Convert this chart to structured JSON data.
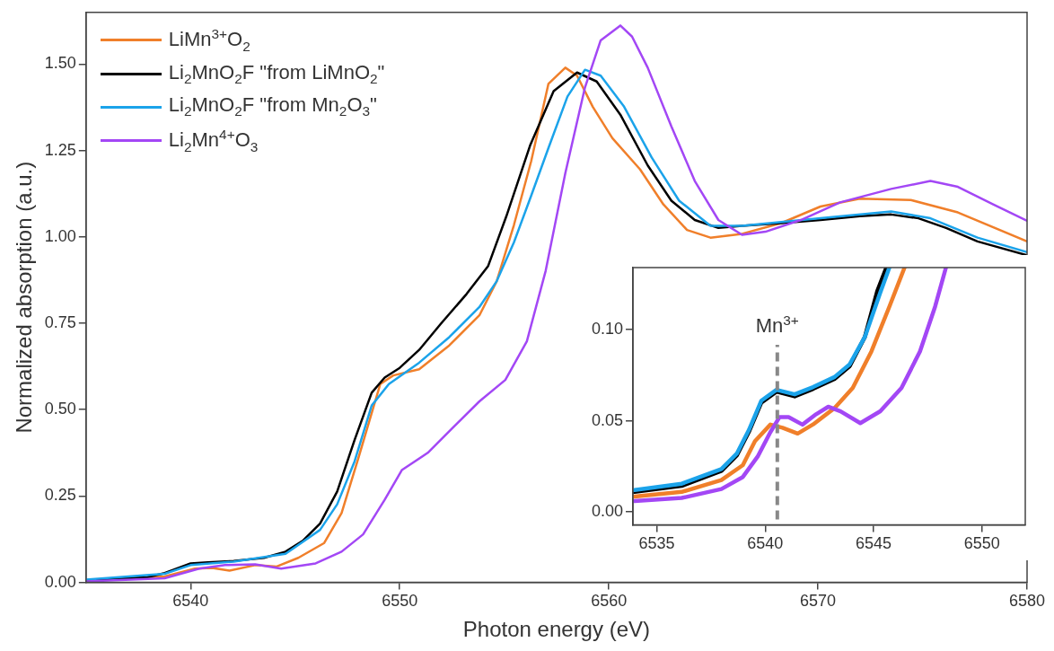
{
  "chart_data": [
    {
      "type": "line",
      "xlabel": "Photon energy (eV)",
      "ylabel": "Normalized absorption (a.u.)",
      "xlim": [
        6535,
        6580
      ],
      "xticks": [
        6540,
        6550,
        6560,
        6570,
        6580
      ],
      "ylim": [
        0,
        1.65
      ],
      "yticks": [
        {
          "value": 0,
          "label": "0.00"
        },
        {
          "value": 0.25,
          "label": "0.25"
        },
        {
          "value": 0.5,
          "label": "0.50"
        },
        {
          "value": 0.75,
          "label": "0.75"
        },
        {
          "value": 1,
          "label": "1.00"
        },
        {
          "value": 1.25,
          "label": "1.25"
        },
        {
          "value": 1.5,
          "label": "1.50"
        }
      ],
      "legend": "top left",
      "marker": "none",
      "line_style": "solid",
      "series": [
        {
          "name": "LiMn$^{3+}$O$_{2}$",
          "color": "#f07f2a",
          "x": [
            6535,
            6538.76,
            6540.21,
            6541.03,
            6541.86,
            6543.09,
            6544.12,
            6545.15,
            6546.39,
            6547.22,
            6548.04,
            6549.07,
            6549.69,
            6550.93,
            6552.37,
            6553.81,
            6554.64,
            6555.46,
            6556.29,
            6557.11,
            6557.92,
            6558.48,
            6559.23,
            6560.17,
            6561.49,
            6562.61,
            6563.74,
            6564.86,
            6566.37,
            6568.24,
            6570.12,
            6572,
            6574.44,
            6576.69,
            6580
          ],
          "values": [
            0.005,
            0.017,
            0.04,
            0.042,
            0.034,
            0.05,
            0.046,
            0.071,
            0.114,
            0.201,
            0.363,
            0.574,
            0.599,
            0.617,
            0.686,
            0.773,
            0.872,
            1.034,
            1.22,
            1.443,
            1.49,
            1.467,
            1.377,
            1.286,
            1.196,
            1.094,
            1.02,
            0.998,
            1.009,
            1.04,
            1.088,
            1.111,
            1.107,
            1.071,
            0.987
          ]
        },
        {
          "name": "Li$_{2}$MnO$_{2}$F \"from LiMnO$_{2}$\"",
          "color": "#000000",
          "x": [
            6535,
            6537.94,
            6538.76,
            6540,
            6540.82,
            6542.06,
            6543.51,
            6544.54,
            6545.36,
            6546.19,
            6547.01,
            6547.84,
            6548.66,
            6549.28,
            6550,
            6550.93,
            6551.96,
            6553.2,
            6554.23,
            6555.1,
            6556.23,
            6557.36,
            6558.48,
            6559.42,
            6560.55,
            6561.86,
            6562.99,
            6564.11,
            6565.24,
            6566.37,
            6568.24,
            6570.12,
            6572,
            6573.5,
            6574.81,
            6576.13,
            6577.63,
            6580
          ],
          "values": [
            0.005,
            0.015,
            0.027,
            0.055,
            0.058,
            0.062,
            0.071,
            0.089,
            0.12,
            0.17,
            0.263,
            0.412,
            0.549,
            0.593,
            0.621,
            0.673,
            0.748,
            0.835,
            0.916,
            1.06,
            1.264,
            1.422,
            1.476,
            1.45,
            1.354,
            1.207,
            1.105,
            1.049,
            1.026,
            1.032,
            1.04,
            1.049,
            1.06,
            1.065,
            1.054,
            1.026,
            0.987,
            0.947
          ]
        },
        {
          "name": "Li$_{2}$MnO$_{2}$F \"from Mn$_{2}$O$_{3}$\"",
          "color": "#1ba3ea",
          "x": [
            6535,
            6538.76,
            6540,
            6542.06,
            6544.54,
            6546.19,
            6547.01,
            6547.84,
            6548.66,
            6549.48,
            6550.93,
            6552.37,
            6553.81,
            6554.64,
            6555.46,
            6556.29,
            6557.11,
            6558.02,
            6558.86,
            6559.61,
            6560.73,
            6562.05,
            6563.36,
            6564.86,
            6566.37,
            6570.12,
            6573.5,
            6575.38,
            6577.63,
            6580
          ],
          "values": [
            0.008,
            0.025,
            0.05,
            0.06,
            0.083,
            0.152,
            0.226,
            0.35,
            0.512,
            0.574,
            0.636,
            0.71,
            0.797,
            0.872,
            0.984,
            1.12,
            1.257,
            1.406,
            1.484,
            1.467,
            1.377,
            1.23,
            1.105,
            1.032,
            1.032,
            1.054,
            1.074,
            1.054,
            0.998,
            0.956
          ]
        },
        {
          "name": "Li$_{2}$Mn$^{4+}$O$_{3}$",
          "color": "#a347f5",
          "x": [
            6535,
            6538.76,
            6540.41,
            6541.65,
            6543.09,
            6544.33,
            6545.98,
            6547.22,
            6548.25,
            6549.28,
            6550.1,
            6551.34,
            6552.58,
            6553.81,
            6555.05,
            6556.08,
            6556.98,
            6557.92,
            6558.86,
            6559.61,
            6560.55,
            6561.11,
            6561.86,
            6562.99,
            6564.11,
            6565.24,
            6566.37,
            6567.49,
            6569.18,
            6571.06,
            6573.5,
            6575.38,
            6576.69,
            6578.38,
            6580
          ],
          "values": [
            0.003,
            0.012,
            0.04,
            0.05,
            0.052,
            0.04,
            0.055,
            0.089,
            0.139,
            0.239,
            0.325,
            0.375,
            0.45,
            0.524,
            0.586,
            0.698,
            0.902,
            1.185,
            1.433,
            1.569,
            1.612,
            1.58,
            1.49,
            1.32,
            1.162,
            1.049,
            1.006,
            1.015,
            1.049,
            1.1,
            1.139,
            1.162,
            1.145,
            1.094,
            1.047
          ]
        }
      ]
    },
    {
      "type": "line",
      "xlim": [
        6533.9,
        6552
      ],
      "xticks": [
        6535,
        6540,
        6545,
        6550
      ],
      "ylim": [
        -0.007,
        0.134
      ],
      "yticks": [
        {
          "value": 0,
          "label": "0.00"
        },
        {
          "value": 0.05,
          "label": "0.05"
        },
        {
          "value": 0.1,
          "label": "0.10"
        }
      ],
      "marker": "none",
      "line_style": "solid",
      "ref_lines": [
        {
          "axis": "x",
          "value": 6540.56,
          "label": "Mn$^{3+}$",
          "color": "#888888",
          "line_style": "dashed"
        }
      ],
      "series": [
        {
          "color": "#f07f2a",
          "x": [
            6533.97,
            6536.15,
            6537.98,
            6538.97,
            6539.53,
            6540.24,
            6540.8,
            6541.5,
            6542.21,
            6543.2,
            6544.04,
            6544.9,
            6545.73,
            6546.43
          ],
          "values": [
            0.0085,
            0.011,
            0.0175,
            0.0257,
            0.0389,
            0.0479,
            0.0462,
            0.043,
            0.048,
            0.057,
            0.068,
            0.088,
            0.1126,
            0.134
          ]
        },
        {
          "color": "#000000",
          "x": [
            6533.97,
            6536.15,
            6537.98,
            6538.69,
            6539.25,
            6539.82,
            6540.52,
            6541.36,
            6542.21,
            6543.2,
            6543.9,
            6544.6,
            6545.17,
            6545.59
          ],
          "values": [
            0.011,
            0.0143,
            0.0225,
            0.031,
            0.044,
            0.06,
            0.066,
            0.0634,
            0.0675,
            0.073,
            0.08,
            0.096,
            0.121,
            0.134
          ]
        },
        {
          "color": "#1ba3ea",
          "x": [
            6533.97,
            6536.15,
            6537.98,
            6538.69,
            6539.25,
            6539.82,
            6540.52,
            6541.36,
            6542.21,
            6543.2,
            6543.9,
            6544.6,
            6545.3,
            6545.73
          ],
          "values": [
            0.012,
            0.0155,
            0.0235,
            0.032,
            0.045,
            0.061,
            0.067,
            0.0645,
            0.0685,
            0.074,
            0.081,
            0.096,
            0.12,
            0.134
          ]
        },
        {
          "color": "#a347f5",
          "x": [
            6533.97,
            6536.15,
            6537.98,
            6538.97,
            6539.67,
            6540.24,
            6540.66,
            6541.08,
            6541.72,
            6542.35,
            6542.91,
            6543.48,
            6544.39,
            6545.31,
            6546.29,
            6547.14,
            6547.84,
            6548.34
          ],
          "values": [
            0.006,
            0.0077,
            0.0126,
            0.0192,
            0.0307,
            0.0438,
            0.052,
            0.052,
            0.0479,
            0.0536,
            0.0577,
            0.0552,
            0.0487,
            0.0552,
            0.068,
            0.088,
            0.1126,
            0.134
          ]
        }
      ]
    }
  ]
}
